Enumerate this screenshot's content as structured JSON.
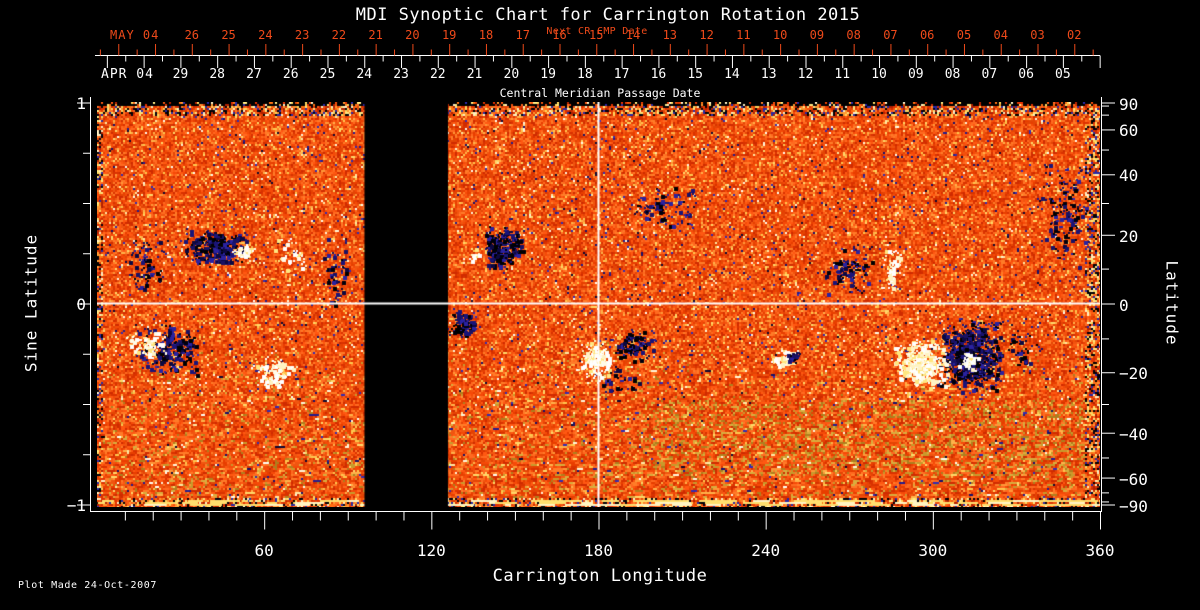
{
  "title": "MDI Synoptic Chart for Carrington Rotation 2015",
  "plot_made": "Plot Made 24-Oct-2007",
  "colors": {
    "background": "#000000",
    "foreground": "#ffffff",
    "next_cr_accent": "#ef4a1a",
    "crosshair": "#ffffff",
    "data_gap": "#000000"
  },
  "chart_data": {
    "type": "heatmap",
    "description": "Solar photospheric magnetic field synoptic map for Carrington rotation 2015 (April-May 2004). Orange/red speckled background flux, dark navy/black patches are negative-polarity active regions, white/yellow patches are positive polarity. A black vertical band marks missing data; white crosshair lines mark longitude 180 and the equator.",
    "x_axis": {
      "label": "Carrington Longitude",
      "range": [
        0,
        360
      ],
      "major_ticks": [
        60,
        120,
        180,
        240,
        300,
        360
      ],
      "minor_tick_step": 10
    },
    "left_axis": {
      "label": "Sine Latitude",
      "range": [
        -1,
        1
      ],
      "labeled_ticks": [
        "1",
        "0",
        "−1"
      ],
      "labeled_tick_values": [
        1,
        0,
        -1
      ],
      "minor_tick_step": 0.25
    },
    "right_axis": {
      "label": "Latitude",
      "labeled_ticks": [
        "90",
        "60",
        "40",
        "20",
        "0",
        "−20",
        "−40",
        "−60",
        "−90"
      ],
      "labeled_tick_values": [
        90,
        60,
        40,
        20,
        0,
        -20,
        -40,
        -60,
        -90
      ],
      "minor_tick_values": [
        80,
        70,
        50,
        30,
        10,
        -10,
        -30,
        -50,
        -70,
        -80
      ]
    },
    "top_axis": {
      "title": "Central Meridian Passage Date",
      "next_cr_row": {
        "label": "Next CR CMP Date",
        "month_label": "MAY 04",
        "day_labels": [
          "26",
          "25",
          "24",
          "23",
          "22",
          "21",
          "20",
          "19",
          "18",
          "17",
          "16",
          "15",
          "14",
          "13",
          "12",
          "11",
          "10",
          "09",
          "08",
          "07",
          "06",
          "05",
          "04",
          "03",
          "02"
        ]
      },
      "cmp_row": {
        "month_label": "APR 04",
        "day_labels": [
          "29",
          "28",
          "27",
          "26",
          "25",
          "24",
          "23",
          "22",
          "21",
          "20",
          "19",
          "18",
          "17",
          "16",
          "15",
          "14",
          "13",
          "12",
          "11",
          "10",
          "09",
          "08",
          "07",
          "06",
          "05"
        ]
      }
    },
    "data_gap_longitude": [
      96,
      126
    ],
    "crosshair": {
      "longitude": 180,
      "sine_latitude": 0
    },
    "south_enhancement": {
      "longitude_range": [
        195,
        355
      ],
      "sine_latitude_range": [
        -0.85,
        -0.48
      ]
    },
    "features": [
      {
        "longitude": 43,
        "sine_latitude": 0.28,
        "r_longitude": 12,
        "r_sine": 0.095,
        "polarity": "negative",
        "density": "dense"
      },
      {
        "longitude": 53.5,
        "sine_latitude": 0.26,
        "r_longitude": 3.5,
        "r_sine": 0.05,
        "polarity": "positive",
        "density": "dense"
      },
      {
        "longitude": 70,
        "sine_latitude": 0.25,
        "r_longitude": 8,
        "r_sine": 0.085,
        "polarity": "positive",
        "density": "sparse"
      },
      {
        "longitude": 17.5,
        "sine_latitude": 0.18,
        "r_longitude": 8,
        "r_sine": 0.16,
        "polarity": "negative",
        "density": "sparse"
      },
      {
        "longitude": 26.5,
        "sine_latitude": -0.23,
        "r_longitude": 12,
        "r_sine": 0.13,
        "polarity": "negative",
        "density": "medium"
      },
      {
        "longitude": 17.5,
        "sine_latitude": -0.2,
        "r_longitude": 7.5,
        "r_sine": 0.07,
        "polarity": "positive",
        "density": "medium"
      },
      {
        "longitude": 63,
        "sine_latitude": -0.34,
        "r_longitude": 8,
        "r_sine": 0.09,
        "polarity": "positive",
        "density": "medium"
      },
      {
        "longitude": 85,
        "sine_latitude": 0.15,
        "r_longitude": 6,
        "r_sine": 0.18,
        "polarity": "negative",
        "density": "sparse"
      },
      {
        "longitude": 145.5,
        "sine_latitude": 0.28,
        "r_longitude": 8,
        "r_sine": 0.11,
        "polarity": "negative",
        "density": "dense"
      },
      {
        "longitude": 135.5,
        "sine_latitude": 0.25,
        "r_longitude": 2.5,
        "r_sine": 0.05,
        "polarity": "positive",
        "density": "medium"
      },
      {
        "longitude": 131.5,
        "sine_latitude": -0.1,
        "r_longitude": 4.5,
        "r_sine": 0.07,
        "polarity": "negative",
        "density": "dense"
      },
      {
        "longitude": 178.5,
        "sine_latitude": -0.28,
        "r_longitude": 6,
        "r_sine": 0.105,
        "polarity": "positive",
        "density": "dense"
      },
      {
        "longitude": 192.5,
        "sine_latitude": -0.21,
        "r_longitude": 8,
        "r_sine": 0.09,
        "polarity": "negative",
        "density": "medium"
      },
      {
        "longitude": 187.5,
        "sine_latitude": -0.39,
        "r_longitude": 9,
        "r_sine": 0.075,
        "polarity": "negative",
        "density": "sparse"
      },
      {
        "longitude": 204,
        "sine_latitude": 0.47,
        "r_longitude": 14,
        "r_sine": 0.12,
        "polarity": "negative",
        "density": "sparse"
      },
      {
        "longitude": 246.5,
        "sine_latitude": -0.27,
        "r_longitude": 4.5,
        "r_sine": 0.05,
        "polarity": "positive",
        "density": "dense"
      },
      {
        "longitude": 249.5,
        "sine_latitude": -0.27,
        "r_longitude": 2.2,
        "r_sine": 0.035,
        "polarity": "negative",
        "density": "dense"
      },
      {
        "longitude": 268.5,
        "sine_latitude": 0.16,
        "r_longitude": 11,
        "r_sine": 0.14,
        "polarity": "negative",
        "density": "sparse"
      },
      {
        "longitude": 285,
        "sine_latitude": 0.18,
        "r_longitude": 3.5,
        "r_sine": 0.12,
        "polarity": "positive",
        "density": "medium"
      },
      {
        "longitude": 313.5,
        "sine_latitude": -0.26,
        "r_longitude": 12.5,
        "r_sine": 0.19,
        "polarity": "negative",
        "density": "dense"
      },
      {
        "longitude": 295.5,
        "sine_latitude": -0.3,
        "r_longitude": 10,
        "r_sine": 0.125,
        "polarity": "positive",
        "density": "dense"
      },
      {
        "longitude": 313,
        "sine_latitude": -0.29,
        "r_longitude": 4,
        "r_sine": 0.05,
        "polarity": "positive",
        "density": "dense"
      },
      {
        "longitude": 331.5,
        "sine_latitude": -0.23,
        "r_longitude": 7,
        "r_sine": 0.09,
        "polarity": "negative",
        "density": "sparse"
      },
      {
        "longitude": 347,
        "sine_latitude": 0.45,
        "r_longitude": 9,
        "r_sine": 0.27,
        "polarity": "negative",
        "density": "sparse"
      }
    ]
  }
}
